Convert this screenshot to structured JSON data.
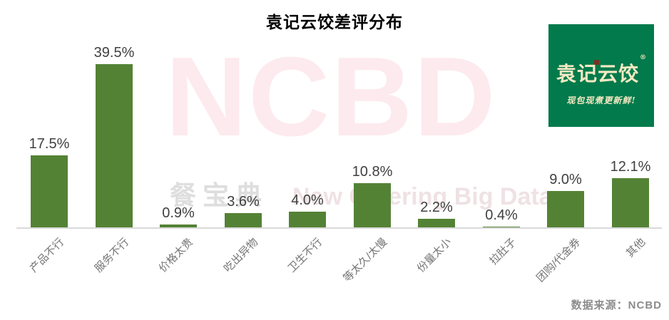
{
  "title": "袁记云饺差评分布",
  "watermark": {
    "big": "NCBD",
    "cn": "餐宝典",
    "en": "New Catering Big Data"
  },
  "logo": {
    "name": "袁记云饺",
    "reg": "®",
    "tagline": "现包现煮更新鲜!",
    "bg_color": "#027A4B",
    "text_color": "#F4E9C3"
  },
  "source": "数据来源：NCBD",
  "chart_data": {
    "type": "bar",
    "title": "袁记云饺差评分布",
    "categories": [
      "产品不行",
      "服务不行",
      "价格太贵",
      "吃出异物",
      "卫生不行",
      "等太久/太慢",
      "份量太小",
      "拉肚子",
      "团购/代金券",
      "其他"
    ],
    "values": [
      17.5,
      39.5,
      0.9,
      3.6,
      4.0,
      10.8,
      2.2,
      0.4,
      9.0,
      12.1
    ],
    "value_labels": [
      "17.5%",
      "39.5%",
      "0.9%",
      "3.6%",
      "4.0%",
      "10.8%",
      "2.2%",
      "0.4%",
      "9.0%",
      "12.1%"
    ],
    "xlabel": "",
    "ylabel": "",
    "ylim": [
      0,
      40
    ],
    "bar_color": "#548235",
    "axis_line_color": "#D9D9D9",
    "label_color": "#404040",
    "category_label_color": "#757575",
    "grid": false,
    "legend": false
  }
}
